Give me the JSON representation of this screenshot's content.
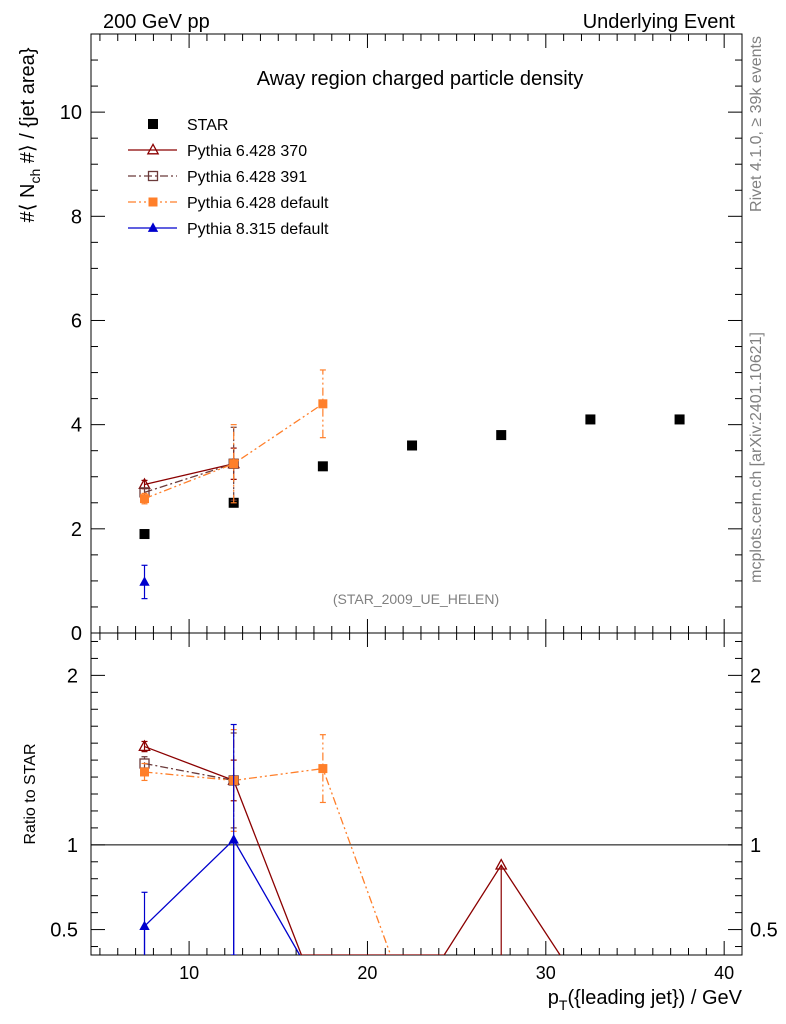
{
  "header": {
    "left": "200 GeV pp",
    "right": "Underlying Event",
    "side_top": "Rivet 4.1.0, ≥ 39k events",
    "side_bottom": "mcplots.cern.ch [arXiv:2401.10621]"
  },
  "chart_data": {
    "type": "scatter",
    "title": "Away region charged particle density",
    "watermark": "(STAR_2009_UE_HELEN)",
    "xlabel": "p_T({leading jet}) / GeV",
    "xlabel_main": "p",
    "xlabel_sub": "T",
    "xlabel_rest": "({leading jet}) / GeV",
    "ylabel": "#⟨ N_ch #⟩ / {jet area}",
    "ylabel_a": "#⟨ N",
    "ylabel_sub": "ch",
    "ylabel_b": " #⟩ / {jet area}",
    "ratio_ylabel": "Ratio to STAR",
    "xlim": [
      4.5,
      41
    ],
    "ylim": [
      0,
      11.5
    ],
    "ratio_ylim": [
      0.35,
      2.25
    ],
    "x_ticks": [
      10,
      20,
      30,
      40
    ],
    "x_tick_labels": [
      "10",
      "20",
      "30",
      "40"
    ],
    "y_ticks": [
      0,
      2,
      4,
      6,
      8,
      10
    ],
    "y_tick_labels": [
      "0",
      "2",
      "4",
      "6",
      "8",
      "10"
    ],
    "ratio_ticks": [
      0.5,
      1,
      2
    ],
    "ratio_tick_labels": [
      "0.5",
      "1",
      "2"
    ],
    "legend_position": "top-left",
    "series": [
      {
        "name": "STAR",
        "color": "#000000",
        "marker": "square-filled",
        "line": "none",
        "x": [
          7.5,
          12.5,
          17.5,
          22.5,
          27.5,
          32.5,
          37.5
        ],
        "y": [
          1.9,
          2.5,
          3.2,
          3.6,
          3.8,
          4.1,
          4.1
        ],
        "err": [
          0,
          0,
          0,
          0,
          0,
          0,
          0
        ],
        "ratio": [],
        "ratio_err": []
      },
      {
        "name": "Pythia 6.428 370",
        "color": "#8b0000",
        "marker": "triangle-open",
        "line": "solid",
        "x": [
          7.5,
          12.5
        ],
        "y": [
          2.85,
          3.25
        ],
        "err": [
          0.08,
          0.3
        ],
        "ratio_x": [
          7.5,
          12.5,
          16.3,
          24.3,
          27.5,
          30.8
        ],
        "ratio": [
          1.58,
          1.38,
          0.35,
          0.35,
          0.88,
          0.35
        ],
        "ratio_err": [
          0.03,
          0.12,
          0,
          0,
          0,
          0
        ]
      },
      {
        "name": "Pythia 6.428 391",
        "color": "#6b3a3a",
        "marker": "square-open",
        "line": "dashdot",
        "x": [
          7.5,
          12.5
        ],
        "y": [
          2.7,
          3.25
        ],
        "err": [
          0.08,
          0.7
        ],
        "ratio_x": [
          7.5,
          12.5
        ],
        "ratio": [
          1.48,
          1.38
        ],
        "ratio_err": [
          0.04,
          0.28
        ]
      },
      {
        "name": "Pythia 6.428 default",
        "color": "#ff7f2a",
        "marker": "square-filled",
        "line": "dashdotdot",
        "x": [
          7.5,
          12.5,
          17.5
        ],
        "y": [
          2.58,
          3.25,
          4.4
        ],
        "err": [
          0.1,
          0.75,
          0.65
        ],
        "ratio_x": [
          7.5,
          12.5,
          17.5,
          21.3
        ],
        "ratio": [
          1.43,
          1.38,
          1.45,
          0.35
        ],
        "ratio_err": [
          0.05,
          0.3,
          0.2,
          0
        ]
      },
      {
        "name": "Pythia 8.315 default",
        "color": "#0000cd",
        "marker": "triangle-filled",
        "line": "solid",
        "x": [
          7.5
        ],
        "y": [
          0.98
        ],
        "err": [
          0.32
        ],
        "ratio_x": [
          7.5,
          12.5,
          16.2
        ],
        "ratio": [
          0.52,
          1.03,
          0.35
        ],
        "ratio_err": [
          0.2,
          0.68,
          0
        ]
      }
    ]
  }
}
